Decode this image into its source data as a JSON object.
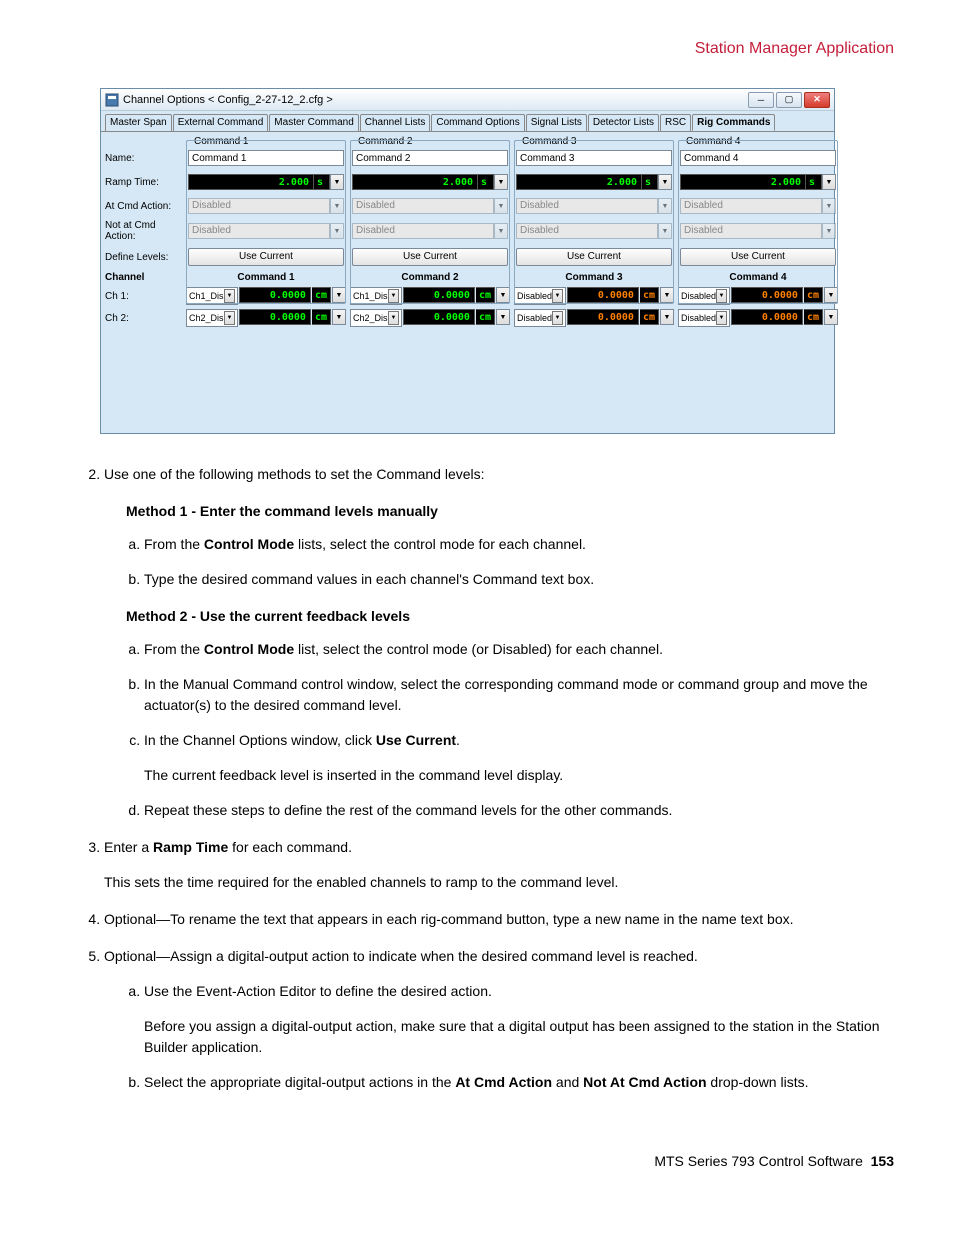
{
  "page": {
    "header_title": "Station Manager Application",
    "footer_prefix": "MTS Series 793 Control Software",
    "footer_page": "153"
  },
  "dialog": {
    "title": "Channel Options < Config_2-27-12_2.cfg >",
    "tabs": [
      "Master Span",
      "External Command",
      "Master Command",
      "Channel Lists",
      "Command Options",
      "Signal Lists",
      "Detector Lists",
      "RSC",
      "Rig Commands"
    ],
    "active_tab_index": 8,
    "row_labels": {
      "name": "Name:",
      "ramp": "Ramp Time:",
      "at_cmd": "At Cmd Action:",
      "not_at_cmd": "Not at Cmd Action:",
      "define": "Define Levels:",
      "channel": "Channel",
      "ch1": "Ch 1:",
      "ch2": "Ch 2:"
    },
    "commands": [
      {
        "legend": "Command 1",
        "name": "Command 1",
        "ramp_val": "2.000",
        "ramp_unit": "s",
        "at": "Disabled",
        "not_at": "Disabled",
        "btn": "Use Current",
        "header": "Command 1"
      },
      {
        "legend": "Command 2",
        "name": "Command 2",
        "ramp_val": "2.000",
        "ramp_unit": "s",
        "at": "Disabled",
        "not_at": "Disabled",
        "btn": "Use Current",
        "header": "Command 2"
      },
      {
        "legend": "Command 3",
        "name": "Command 3",
        "ramp_val": "2.000",
        "ramp_unit": "s",
        "at": "Disabled",
        "not_at": "Disabled",
        "btn": "Use Current",
        "header": "Command 3"
      },
      {
        "legend": "Command 4",
        "name": "Command 4",
        "ramp_val": "2.000",
        "ramp_unit": "s",
        "at": "Disabled",
        "not_at": "Disabled",
        "btn": "Use Current",
        "header": "Command 4"
      }
    ],
    "channels": [
      {
        "label": "Ch 1:",
        "cells": [
          {
            "mode": "Ch1_Dis",
            "val": "0.0000",
            "unit": "cm"
          },
          {
            "mode": "Ch1_Dis",
            "val": "0.0000",
            "unit": "cm"
          },
          {
            "mode": "Disabled",
            "val": "0.0000",
            "unit": "cm"
          },
          {
            "mode": "Disabled",
            "val": "0.0000",
            "unit": "cm"
          }
        ]
      },
      {
        "label": "Ch 2:",
        "cells": [
          {
            "mode": "Ch2_Dis",
            "val": "0.0000",
            "unit": "cm"
          },
          {
            "mode": "Ch2_Dis",
            "val": "0.0000",
            "unit": "cm"
          },
          {
            "mode": "Disabled",
            "val": "0.0000",
            "unit": "cm"
          },
          {
            "mode": "Disabled",
            "val": "0.0000",
            "unit": "cm"
          }
        ]
      }
    ],
    "colors": {
      "lcd_bg": "#000000",
      "lcd_fg": "#00ff00",
      "lcd_fg_orange": "#ff8000",
      "dialog_bg": "#d6e8f5"
    }
  },
  "doc": {
    "step2_intro": "Use one of the following methods to set the Command levels:",
    "method1_title": "Method 1 - Enter the command levels manually",
    "m1a_pre": "From the ",
    "m1a_bold": "Control Mode",
    "m1a_post": " lists, select the control mode for each channel.",
    "m1b": "Type the desired command values in each channel's Command text box.",
    "method2_title": "Method 2 - Use the current feedback levels",
    "m2a_pre": "From the ",
    "m2a_bold": "Control Mode",
    "m2a_post": " list, select the control mode (or Disabled) for each channel.",
    "m2b": "In the Manual Command control window, select the corresponding command mode or command group and move the actuator(s) to the desired command level.",
    "m2c_pre": "In the Channel Options window, click ",
    "m2c_bold": "Use Current",
    "m2c_post": ".",
    "m2c_note": "The current feedback level is inserted in the command level display.",
    "m2d": "Repeat these steps to define the rest of the command levels for the other commands.",
    "step3_pre": "Enter a ",
    "step3_bold": "Ramp Time",
    "step3_post": " for each command.",
    "step3_note": "This sets the time required for the enabled channels to ramp to the command level.",
    "step4": "Optional—To rename the text that appears in each rig-command button, type a new name in the name text box.",
    "step5": "Optional—Assign a digital-output action to indicate when the desired command level is reached.",
    "s5a": "Use the Event-Action Editor to define the desired action.",
    "s5a_note": "Before you assign a digital-output action, make sure that a digital output has been assigned to the station in the Station Builder application.",
    "s5b_pre": "Select the appropriate digital-output actions in the ",
    "s5b_b1": "At Cmd Action",
    "s5b_mid": " and ",
    "s5b_b2": "Not At Cmd Action",
    "s5b_post": " drop-down lists."
  }
}
